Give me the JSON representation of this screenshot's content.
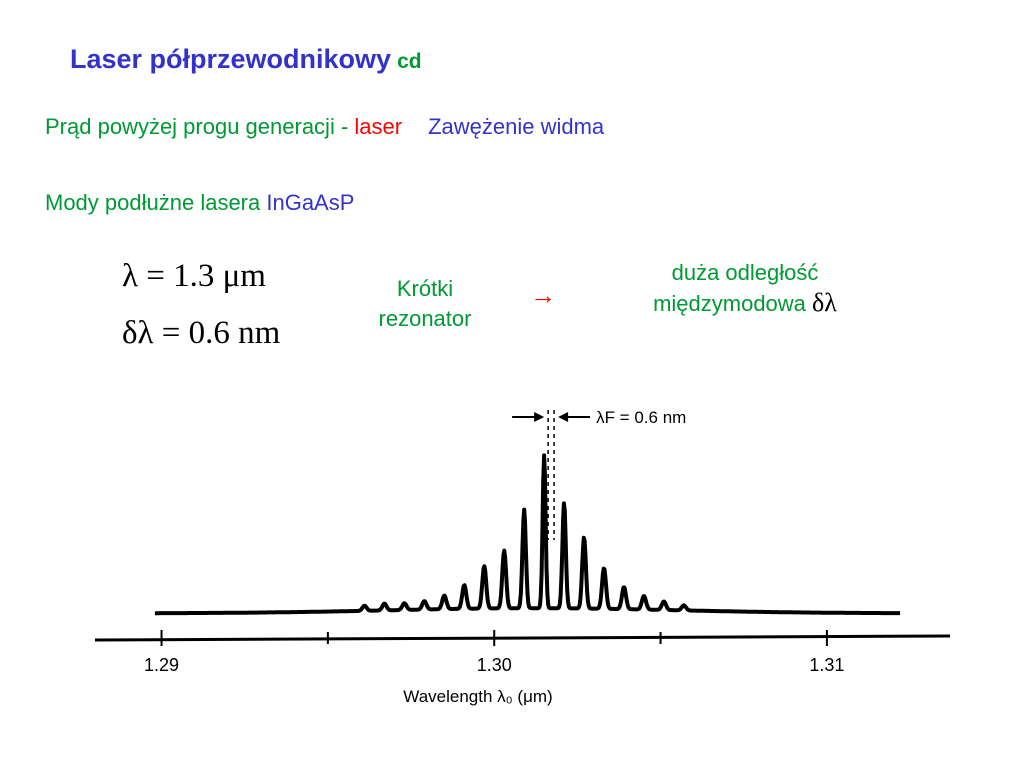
{
  "slide": {
    "title": "Laser półprzewodnikowy",
    "title_suffix": "cd",
    "line1": {
      "prefix": "Prąd powyżej progu generacji - ",
      "highlight": "laser",
      "right": "Zawężenie widma"
    },
    "line2": {
      "prefix": "Mody podłużne lasera ",
      "highlight": "InGaAsP"
    },
    "formula_lambda": "λ = 1.3 μm",
    "formula_dlambda": "δλ = 0.6 nm",
    "short_resonator": {
      "line1": "Krótki",
      "line2": "rezonator"
    },
    "arrow": "→",
    "large_distance": {
      "line1": "duża odległość",
      "line2": "międzymodowa",
      "symbol": "δλ"
    }
  },
  "colors": {
    "title": "#3333cc",
    "green": "#009933",
    "red": "#ff0000",
    "blue": "#3333cc",
    "plot": "#000000"
  },
  "chart_data": {
    "type": "line",
    "xlabel": "Wavelength λ₀ (μm)",
    "xlim": [
      1.288,
      1.3137
    ],
    "ticks": [
      {
        "value": 1.29,
        "label": "1.29",
        "major": true
      },
      {
        "value": 1.295,
        "label": "",
        "major": false
      },
      {
        "value": 1.3,
        "label": "1.30",
        "major": true
      },
      {
        "value": 1.305,
        "label": "",
        "major": false
      },
      {
        "value": 1.31,
        "label": "1.31",
        "major": true
      }
    ],
    "mode_spacing_label": "λF = 0.6 nm",
    "mode_spacing_marks": [
      1.3015,
      1.3021
    ],
    "baseline": 0.05,
    "spectrum_range": [
      1.2898,
      1.3122
    ],
    "modes": [
      {
        "x": 1.2961,
        "y": 0.03
      },
      {
        "x": 1.2967,
        "y": 0.04
      },
      {
        "x": 1.2973,
        "y": 0.04
      },
      {
        "x": 1.2979,
        "y": 0.05
      },
      {
        "x": 1.2985,
        "y": 0.08
      },
      {
        "x": 1.2991,
        "y": 0.14
      },
      {
        "x": 1.2997,
        "y": 0.25
      },
      {
        "x": 1.3003,
        "y": 0.34
      },
      {
        "x": 1.3009,
        "y": 0.58
      },
      {
        "x": 1.3015,
        "y": 0.9
      },
      {
        "x": 1.3021,
        "y": 0.62
      },
      {
        "x": 1.3027,
        "y": 0.42
      },
      {
        "x": 1.3033,
        "y": 0.24
      },
      {
        "x": 1.3039,
        "y": 0.13
      },
      {
        "x": 1.3045,
        "y": 0.08
      },
      {
        "x": 1.3051,
        "y": 0.05
      },
      {
        "x": 1.3057,
        "y": 0.03
      }
    ]
  }
}
